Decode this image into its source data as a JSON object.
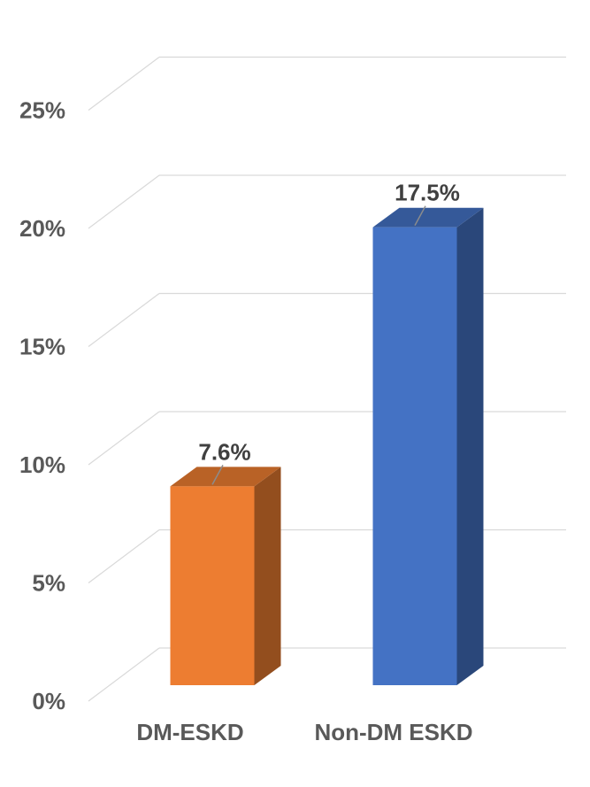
{
  "chart_data": {
    "type": "bar",
    "style": "3d-column",
    "categories": [
      "DM-ESKD",
      "Non-DM ESKD"
    ],
    "values": [
      7.6,
      17.5
    ],
    "data_labels": [
      "7.6%",
      "17.5%"
    ],
    "ylim": [
      0,
      25
    ],
    "y_ticks": [
      "0%",
      "5%",
      "10%",
      "15%",
      "20%",
      "25%"
    ],
    "y_tick_values": [
      0,
      5,
      10,
      15,
      20,
      25
    ],
    "grid": true,
    "legend": "none",
    "colors": {
      "bars": [
        "#ED7D31",
        "#4472C4"
      ],
      "grid": "#d9d9d9",
      "text": "#595959"
    }
  }
}
